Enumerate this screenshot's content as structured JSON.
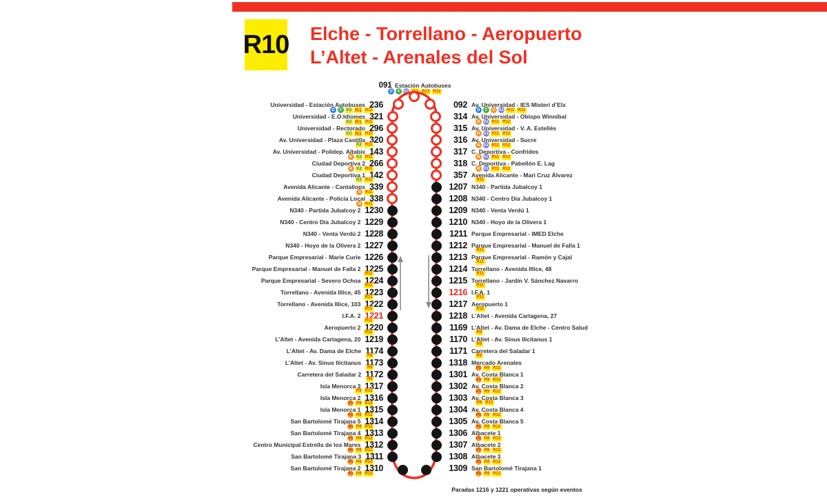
{
  "header": {
    "line_code": "R10",
    "title_line1": "Elche - Torrellano - Aeropuerto",
    "title_line2": "L’Altet - Arenales del Sol"
  },
  "terminus": {
    "number": "091",
    "name": "Estación Autobuses",
    "badges": [
      "D",
      "F",
      "K1",
      "R1",
      "R13",
      "R12"
    ]
  },
  "footer_note": "Paradas 1216 y 1221 operativas según eventos",
  "colors": {
    "accent_red": "#ee3124",
    "line_yellow": "#fdee00",
    "node_black": "#141414",
    "highlight_number_red": "#e8251f"
  },
  "badge_styles": {
    "D": {
      "shape": "circle",
      "bg": "#2f80e4",
      "fg": "#ffffff"
    },
    "F": {
      "shape": "circle",
      "bg": "#3fae49",
      "fg": "#ffffff"
    },
    "H": {
      "shape": "circle",
      "bg": "#f6921e",
      "fg": "#ffffff"
    },
    "K1": {
      "shape": "circle",
      "bg": "#7a7fd4",
      "fg": "#ffffff"
    },
    "P1": {
      "shape": "circle",
      "bg": "#f9a11b",
      "fg": "#c22026"
    },
    "K2": {
      "shape": "pill",
      "bg": "#fdee00",
      "fg": "#2f80e4"
    },
    "R1": {
      "shape": "pill",
      "bg": "#fdee00",
      "fg": "#e8342b",
      "big": true
    },
    "R9": {
      "shape": "pill",
      "bg": "#fdee00",
      "fg": "#e8342b"
    },
    "R11": {
      "shape": "pill",
      "bg": "#fdee00",
      "fg": "#e8342b"
    },
    "R12": {
      "shape": "pill",
      "bg": "#fdee00",
      "fg": "#e8342b"
    },
    "R13": {
      "shape": "pill",
      "bg": "#fdee00",
      "fg": "#e8342b"
    }
  },
  "left_stops": [
    {
      "num": "236",
      "name": "Universidad - Estación Autobuses",
      "badges": [
        "D",
        "F",
        "K2",
        "R1",
        "R11"
      ],
      "node": "open",
      "red": false
    },
    {
      "num": "321",
      "name": "Universidad - E.O.Idiomes",
      "badges": [
        "K2",
        "R1",
        "R11"
      ],
      "node": "open",
      "red": false
    },
    {
      "num": "296",
      "name": "Universidad - Rectorado",
      "badges": [
        "K2",
        "R1",
        "R11"
      ],
      "node": "open",
      "red": false
    },
    {
      "num": "320",
      "name": "Av. Universidad - Plaza Castilla",
      "badges": [
        "K2",
        "R11"
      ],
      "node": "open",
      "red": false
    },
    {
      "num": "143",
      "name": "Av. Universidad - Polidep. Altabix",
      "badges": [
        "H",
        "K2",
        "R11"
      ],
      "node": "open",
      "red": false
    },
    {
      "num": "266",
      "name": "Ciudad Deportiva 2",
      "badges": [
        "H",
        "K2",
        "R11"
      ],
      "node": "open",
      "red": false
    },
    {
      "num": "142",
      "name": "Ciudad Deportiva 1",
      "badges": [
        "K2",
        "R11"
      ],
      "node": "open",
      "red": false
    },
    {
      "num": "339",
      "name": "Avenida Alicante - Cantallops",
      "badges": [
        "H",
        "R11"
      ],
      "node": "open",
      "red": false
    },
    {
      "num": "338",
      "name": "Avenida Alicante - Policia Local",
      "badges": [
        "H",
        "R11"
      ],
      "node": "open",
      "red": false
    },
    {
      "num": "1230",
      "name": "N340 - Partida Jubalcoy 2",
      "badges": [],
      "node": "filled",
      "red": false
    },
    {
      "num": "1229",
      "name": "N340 - Centro Día Jubalcoy 2",
      "badges": [],
      "node": "filled",
      "red": false
    },
    {
      "num": "1228",
      "name": "N340 - Venta Verdú 2",
      "badges": [],
      "node": "filled",
      "red": false
    },
    {
      "num": "1227",
      "name": "N340 - Hoyo de la Olivera 2",
      "badges": [],
      "node": "filled",
      "red": false
    },
    {
      "num": "1226",
      "name": "Parque Empresarial - Marie Curie",
      "badges": [],
      "node": "filled",
      "red": false
    },
    {
      "num": "1225",
      "name": "Parque Empresarial - Manuel de Falla 2",
      "badges": [
        "R11"
      ],
      "node": "filled",
      "red": false
    },
    {
      "num": "1224",
      "name": "Parque Empresarial - Severo Ochoa",
      "badges": [
        "R11"
      ],
      "node": "filled",
      "red": false
    },
    {
      "num": "1223",
      "name": "Torrellano - Avenida Illice, 45",
      "badges": [
        "R11"
      ],
      "node": "filled",
      "red": false
    },
    {
      "num": "1222",
      "name": "Torrellano - Avenida Illice, 103",
      "badges": [
        "R11"
      ],
      "node": "filled",
      "red": false
    },
    {
      "num": "1221",
      "name": "I.F.A. 2",
      "badges": [
        "R11"
      ],
      "node": "filled",
      "red": true
    },
    {
      "num": "1220",
      "name": "Aeropuerto 2",
      "badges": [
        "R11"
      ],
      "node": "filled",
      "red": false
    },
    {
      "num": "1219",
      "name": "L’Altet - Avenida Cartagena, 20",
      "badges": [],
      "node": "filled",
      "red": false
    },
    {
      "num": "1174",
      "name": "L’Altet - Av. Dama de Elche",
      "badges": [
        "R9"
      ],
      "node": "filled",
      "red": false
    },
    {
      "num": "1173",
      "name": "L’Altet - Av. Sinus Ilicitanus",
      "badges": [
        "R9"
      ],
      "node": "filled",
      "red": false
    },
    {
      "num": "1172",
      "name": "Carretera del Saladar 2",
      "badges": [
        "R9"
      ],
      "node": "filled",
      "red": false
    },
    {
      "num": "1317",
      "name": "Isla Menorca 3",
      "badges": [
        "R9",
        "R12"
      ],
      "node": "filled",
      "red": false
    },
    {
      "num": "1316",
      "name": "Isla Menorca 2",
      "badges": [
        "P1",
        "R9",
        "R12"
      ],
      "node": "filled",
      "red": false
    },
    {
      "num": "1315",
      "name": "Isla Menorca 1",
      "badges": [
        "P1",
        "R9",
        "R12"
      ],
      "node": "filled",
      "red": false
    },
    {
      "num": "1314",
      "name": "San Bartolomé Tirajana 5",
      "badges": [
        "P1",
        "R9",
        "R12"
      ],
      "node": "filled",
      "red": false
    },
    {
      "num": "1313",
      "name": "San Bartolomé Tirajana 4",
      "badges": [
        "P1",
        "R9",
        "R12"
      ],
      "node": "filled",
      "red": false
    },
    {
      "num": "1312",
      "name": "Centro Municipal Estrella de los Mares",
      "badges": [
        "P1",
        "R9",
        "R12"
      ],
      "node": "filled",
      "red": false
    },
    {
      "num": "1311",
      "name": "San Bartolomé Tirajana 3",
      "badges": [
        "P1",
        "R9",
        "R12"
      ],
      "node": "filled",
      "red": false
    },
    {
      "num": "1310",
      "name": "San Bartolomé Tirajana 2",
      "badges": [
        "P1",
        "R9",
        "R12"
      ],
      "node": "filled",
      "red": false
    }
  ],
  "right_stops": [
    {
      "num": "092",
      "name": "Av. Universidad - IES Misteri d’Elx",
      "badges": [
        "D",
        "F",
        "H",
        "K1",
        "R11",
        "R12"
      ],
      "node": "open",
      "red": false
    },
    {
      "num": "314",
      "name": "Av. Universidad - Obispo Winnibal",
      "badges": [
        "H",
        "K1",
        "R11",
        "R12"
      ],
      "node": "open",
      "red": false
    },
    {
      "num": "315",
      "name": "Av. Universidad - V. A. Estellés",
      "badges": [
        "H",
        "K1",
        "R11",
        "R12"
      ],
      "node": "open",
      "red": false
    },
    {
      "num": "316",
      "name": "Av. Universidad - Sucre",
      "badges": [
        "H",
        "K1",
        "R11",
        "R12"
      ],
      "node": "open",
      "red": false
    },
    {
      "num": "317",
      "name": "C. Deportiva - Confrides",
      "badges": [
        "H",
        "K1",
        "R11",
        "R12"
      ],
      "node": "open",
      "red": false
    },
    {
      "num": "318",
      "name": "C. Deportiva - Pabellón E. Lag",
      "badges": [
        "H",
        "K1",
        "R11",
        "R12"
      ],
      "node": "open",
      "red": false
    },
    {
      "num": "357",
      "name": "Avenida Alicante - Mari Cruz Álvarez",
      "badges": [
        "R11"
      ],
      "node": "open",
      "red": false
    },
    {
      "num": "1207",
      "name": "N340 - Partida Jubalcoy 1",
      "badges": [],
      "node": "filled",
      "red": false
    },
    {
      "num": "1208",
      "name": "N340 - Centro Día Jubalcoy 1",
      "badges": [],
      "node": "filled",
      "red": false
    },
    {
      "num": "1209",
      "name": "N340 - Venta Verdú 1",
      "badges": [],
      "node": "filled",
      "red": false
    },
    {
      "num": "1210",
      "name": "N340 - Hoyo de la Olivera 1",
      "badges": [],
      "node": "filled",
      "red": false
    },
    {
      "num": "1211",
      "name": "Parque Empresarial - IMED Elche",
      "badges": [],
      "node": "filled",
      "red": false
    },
    {
      "num": "1212",
      "name": "Parque Empresarial - Manuel de Falla 1",
      "badges": [
        "R11"
      ],
      "node": "filled",
      "red": false
    },
    {
      "num": "1213",
      "name": "Parque Empresarial - Ramón y Cajal",
      "badges": [
        "R11"
      ],
      "node": "filled",
      "red": false
    },
    {
      "num": "1214",
      "name": "Torrellano - Avenida Illice, 48",
      "badges": [
        "R11"
      ],
      "node": "filled",
      "red": false
    },
    {
      "num": "1215",
      "name": "Torrellano - Jardín V. Sánchez Navarro",
      "badges": [
        "R11"
      ],
      "node": "filled",
      "red": false
    },
    {
      "num": "1216",
      "name": "I.F.A. 1",
      "badges": [
        "R11"
      ],
      "node": "filled",
      "red": true
    },
    {
      "num": "1217",
      "name": "Aeropuerto 1",
      "badges": [
        "R11"
      ],
      "node": "filled",
      "red": false
    },
    {
      "num": "1218",
      "name": "L’Altet - Avenida Cartagena, 27",
      "badges": [],
      "node": "filled",
      "red": false
    },
    {
      "num": "1169",
      "name": "L’Altet - Av. Dama de Elche - Centro Salud",
      "badges": [
        "R9"
      ],
      "node": "filled",
      "red": false
    },
    {
      "num": "1170",
      "name": "L’Altet - Av. Sinus Ilicitanus 1",
      "badges": [
        "R9"
      ],
      "node": "filled",
      "red": false
    },
    {
      "num": "1171",
      "name": "Carretera del Saladar 1",
      "badges": [
        "R9"
      ],
      "node": "filled",
      "red": false
    },
    {
      "num": "1318",
      "name": "Mercado Arenales",
      "badges": [
        "P1",
        "R9",
        "R12"
      ],
      "node": "filled",
      "red": false
    },
    {
      "num": "1301",
      "name": "Av. Costa Blanca 1",
      "badges": [
        "P1",
        "R9",
        "R12"
      ],
      "node": "filled",
      "red": false
    },
    {
      "num": "1302",
      "name": "Av. Costa Blanca 2",
      "badges": [
        "P1",
        "R9",
        "R12"
      ],
      "node": "filled",
      "red": false
    },
    {
      "num": "1303",
      "name": "Av. Costa Blanca 3",
      "badges": [
        "R9",
        "R12"
      ],
      "node": "filled",
      "red": false
    },
    {
      "num": "1304",
      "name": "Av. Costa Blanca 4",
      "badges": [
        "P1",
        "R9",
        "R12"
      ],
      "node": "filled",
      "red": false
    },
    {
      "num": "1305",
      "name": "Av. Costa Blanca 5",
      "badges": [
        "P1",
        "R9",
        "R12"
      ],
      "node": "filled",
      "red": false
    },
    {
      "num": "1306",
      "name": "Albacete 1",
      "badges": [
        "P1",
        "R9",
        "R12"
      ],
      "node": "filled",
      "red": false
    },
    {
      "num": "1307",
      "name": "Albacete 2",
      "badges": [
        "P1",
        "R9",
        "R12"
      ],
      "node": "filled",
      "red": false
    },
    {
      "num": "1308",
      "name": "Albacete 3",
      "badges": [
        "P1",
        "R9",
        "R12"
      ],
      "node": "filled",
      "red": false
    },
    {
      "num": "1309",
      "name": "San Bartolomé Tirajana 1",
      "badges": [
        "P1",
        "R9",
        "R12"
      ],
      "node": "filled",
      "red": false
    }
  ]
}
